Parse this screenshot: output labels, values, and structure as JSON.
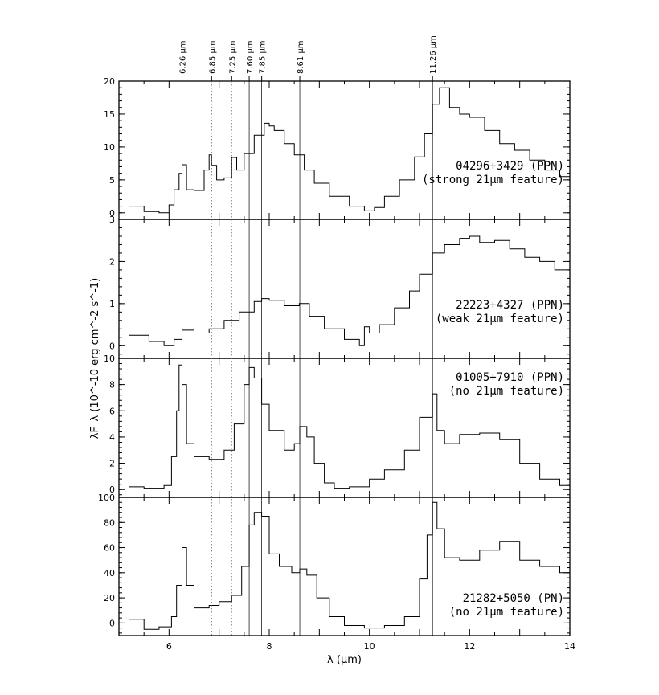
{
  "chart_data": {
    "type": "line",
    "xlabel": "λ (μm)",
    "ylabel": "λF_λ (10^-10 erg cm^-2 s^-1)",
    "xlim": [
      5,
      14
    ],
    "x_ticks": [
      6,
      8,
      10,
      12,
      14
    ],
    "reference_lines": [
      {
        "label": "6.26 μm",
        "x": 6.26,
        "style": "solid"
      },
      {
        "label": "6.85 μm",
        "x": 6.85,
        "style": "dotted"
      },
      {
        "label": "7.25 μm",
        "x": 7.25,
        "style": "dotted"
      },
      {
        "label": "7.60 μm",
        "x": 7.6,
        "style": "solid"
      },
      {
        "label": "7.85 μm",
        "x": 7.85,
        "style": "solid"
      },
      {
        "label": "8.61 μm",
        "x": 8.61,
        "style": "solid"
      },
      {
        "label": "11.26 μm",
        "x": 11.26,
        "style": "solid"
      }
    ],
    "panels": [
      {
        "annotation": [
          "04296+3429 (PPN)",
          "(strong 21μm feature)"
        ],
        "ylim": [
          -1,
          20
        ],
        "y_ticks": [
          0,
          5,
          10,
          15,
          20
        ],
        "x": [
          5.2,
          5.5,
          5.8,
          6.0,
          6.1,
          6.2,
          6.26,
          6.35,
          6.5,
          6.7,
          6.8,
          6.85,
          6.95,
          7.1,
          7.25,
          7.35,
          7.5,
          7.7,
          7.9,
          8.0,
          8.1,
          8.3,
          8.5,
          8.7,
          8.9,
          9.2,
          9.6,
          9.9,
          10.1,
          10.3,
          10.6,
          10.9,
          11.1,
          11.26,
          11.4,
          11.6,
          11.8,
          12.0,
          12.3,
          12.6,
          12.9,
          13.2,
          13.5,
          13.8,
          14.0
        ],
        "y": [
          1.0,
          0.2,
          0.0,
          1.2,
          3.5,
          6.0,
          7.3,
          3.5,
          3.4,
          6.5,
          8.8,
          7.2,
          5.0,
          5.3,
          8.4,
          6.5,
          9.0,
          11.8,
          13.6,
          13.2,
          12.5,
          10.5,
          8.8,
          6.5,
          4.5,
          2.5,
          1.0,
          0.3,
          0.8,
          2.5,
          5.0,
          8.5,
          12.0,
          16.5,
          19.0,
          16.0,
          15.0,
          14.5,
          12.5,
          10.5,
          9.5,
          8.0,
          6.5,
          5.5,
          5.2
        ]
      },
      {
        "annotation": [
          "22223+4327 (PPN)",
          "(weak 21μm feature)"
        ],
        "ylim": [
          -0.3,
          3
        ],
        "y_ticks": [
          0,
          1,
          2,
          3
        ],
        "x": [
          5.2,
          5.6,
          5.9,
          6.1,
          6.26,
          6.5,
          6.8,
          7.1,
          7.4,
          7.7,
          7.85,
          8.0,
          8.3,
          8.6,
          8.8,
          9.1,
          9.5,
          9.8,
          9.9,
          10.0,
          10.2,
          10.5,
          10.8,
          11.0,
          11.26,
          11.5,
          11.8,
          12.0,
          12.2,
          12.5,
          12.8,
          13.1,
          13.4,
          13.7,
          14.0
        ],
        "y": [
          0.25,
          0.1,
          0.0,
          0.15,
          0.37,
          0.3,
          0.4,
          0.6,
          0.8,
          1.05,
          1.12,
          1.08,
          0.95,
          1.0,
          0.7,
          0.4,
          0.15,
          0.0,
          0.45,
          0.3,
          0.5,
          0.9,
          1.3,
          1.7,
          2.2,
          2.4,
          2.55,
          2.6,
          2.45,
          2.5,
          2.3,
          2.1,
          2.0,
          1.8,
          1.2
        ]
      },
      {
        "annotation": [
          "01005+7910 (PPN)",
          "(no 21μm feature)"
        ],
        "ylim": [
          -0.6,
          10
        ],
        "y_ticks": [
          0,
          2,
          4,
          6,
          8,
          10
        ],
        "x": [
          5.2,
          5.5,
          5.9,
          6.05,
          6.15,
          6.2,
          6.26,
          6.35,
          6.5,
          6.8,
          7.1,
          7.3,
          7.5,
          7.6,
          7.7,
          7.85,
          8.0,
          8.3,
          8.5,
          8.61,
          8.75,
          8.9,
          9.1,
          9.3,
          9.6,
          10.0,
          10.3,
          10.7,
          11.0,
          11.26,
          11.35,
          11.5,
          11.8,
          12.2,
          12.6,
          13.0,
          13.4,
          13.8,
          14.0
        ],
        "y": [
          0.2,
          0.1,
          0.3,
          2.5,
          6.0,
          9.5,
          8.0,
          3.5,
          2.5,
          2.3,
          3.0,
          5.0,
          8.0,
          9.3,
          8.5,
          6.5,
          4.5,
          3.0,
          3.5,
          4.8,
          4.0,
          2.0,
          0.5,
          0.1,
          0.2,
          0.8,
          1.5,
          3.0,
          5.5,
          7.3,
          4.5,
          3.5,
          4.2,
          4.3,
          3.8,
          2.0,
          0.8,
          0.3,
          0.0
        ]
      },
      {
        "annotation": [
          "21282+5050 (PN)",
          "(no 21μm feature)"
        ],
        "ylim": [
          -10,
          100
        ],
        "y_ticks": [
          0,
          20,
          40,
          60,
          80,
          100
        ],
        "x": [
          5.2,
          5.5,
          5.8,
          6.05,
          6.15,
          6.26,
          6.35,
          6.5,
          6.8,
          7.0,
          7.25,
          7.45,
          7.6,
          7.7,
          7.85,
          8.0,
          8.2,
          8.45,
          8.61,
          8.75,
          8.95,
          9.2,
          9.5,
          9.9,
          10.3,
          10.7,
          11.0,
          11.15,
          11.26,
          11.35,
          11.5,
          11.8,
          12.2,
          12.6,
          13.0,
          13.4,
          13.8,
          14.0
        ],
        "y": [
          3.0,
          -5.0,
          -3.0,
          5.0,
          30.0,
          60.0,
          30.0,
          12.0,
          14.0,
          17.0,
          22.0,
          45.0,
          78.0,
          88.0,
          85.0,
          55.0,
          45.0,
          40.0,
          43.0,
          38.0,
          20.0,
          5.0,
          -2.0,
          -4.0,
          -2.0,
          5.0,
          35.0,
          70.0,
          96.0,
          75.0,
          52.0,
          50.0,
          58.0,
          65.0,
          50.0,
          45.0,
          40.0,
          35.0
        ]
      }
    ]
  }
}
